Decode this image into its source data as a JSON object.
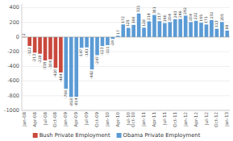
{
  "chart_data": {
    "type": "bar",
    "categories": [
      "Jan-08",
      null,
      "Apr-08",
      null,
      "Jul-08",
      null,
      "Oct-08",
      null,
      "Jan-09",
      null,
      "Apr-09",
      null,
      "Jul-09",
      null,
      "Oct-09",
      null,
      "Jan-10",
      null,
      "Apr-10",
      null,
      "Jul-10",
      "Oct-10",
      null,
      "Jan-11",
      null,
      "Apr-11",
      null,
      "Jul-11",
      null,
      "Oct-11",
      null,
      "Jan-12",
      null,
      "Apr-12",
      null,
      "Jul-12",
      null,
      "Oct-12",
      null,
      "Jan-13"
    ],
    "series": [
      {
        "name": "Bush Private Employment",
        "color": "#c9483c",
        "values": [
          2,
          -122,
          -213,
          -228,
          -319,
          -304,
          -420,
          -484,
          null,
          null,
          null,
          null,
          null,
          null,
          null,
          null,
          null,
          null,
          null,
          null,
          null,
          null,
          null,
          null,
          null,
          null,
          null,
          null,
          null,
          null,
          null,
          null,
          null,
          null,
          null,
          null,
          null,
          null,
          null,
          null
        ]
      },
      {
        "name": "Obama Private Employment",
        "color": "#5b9bd5",
        "values": [
          null,
          null,
          null,
          null,
          null,
          null,
          null,
          null,
          -706,
          -818,
          -814,
          -147,
          -141,
          -442,
          -247,
          -123,
          -111,
          -26,
          17,
          172,
          125,
          166,
          321,
          128,
          214,
          301,
          217,
          190,
          204,
          243,
          246,
          292,
          204,
          222,
          195,
          171,
          232,
          113,
          205,
          88
        ]
      }
    ],
    "ylim": [
      -1000,
      450
    ],
    "yticks": [
      -1000,
      -800,
      -600,
      -400,
      -200,
      0,
      200,
      400
    ],
    "grid": true,
    "legend": "bottom",
    "data_labels": true
  }
}
